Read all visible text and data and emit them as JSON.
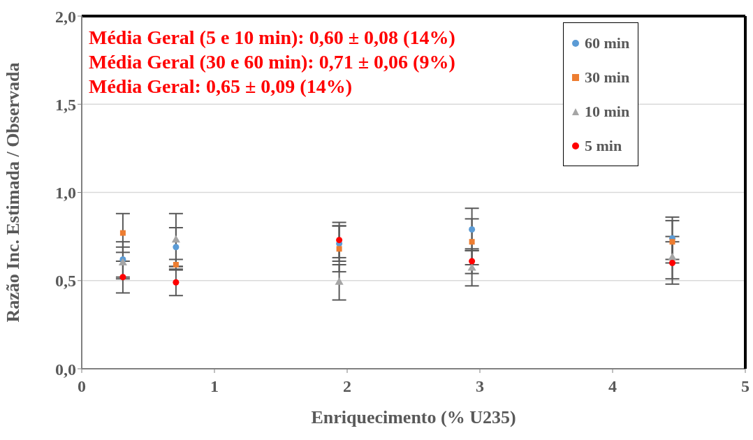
{
  "chart_data": {
    "type": "scatter",
    "xlabel": "Enriquecimento (% U235)",
    "ylabel": "Razão Inc. Estimada / Observada",
    "x": [
      0.31,
      0.71,
      1.94,
      2.94,
      4.45
    ],
    "series": [
      {
        "name": "60 min",
        "color": "#5b9bd5",
        "marker": "circle",
        "values": [
          0.62,
          0.69,
          0.71,
          0.79,
          0.74
        ],
        "errors": [
          0.1,
          0.11,
          0.1,
          0.12,
          0.12
        ]
      },
      {
        "name": "30 min",
        "color": "#ed7d31",
        "marker": "square",
        "values": [
          0.77,
          0.59,
          0.68,
          0.72,
          0.72
        ],
        "errors": [
          0.11,
          0.03,
          0.13,
          0.13,
          0.12
        ]
      },
      {
        "name": "10 min",
        "color": "#a5a5a5",
        "marker": "triangle",
        "values": [
          0.6,
          0.73,
          0.49,
          0.57,
          0.63
        ],
        "errors": [
          0.09,
          0.15,
          0.1,
          0.1,
          0.12
        ]
      },
      {
        "name": "5 min",
        "color": "#ff0000",
        "marker": "circle",
        "values": [
          0.52,
          0.49,
          0.73,
          0.61,
          0.6
        ],
        "errors": [
          0.09,
          0.075,
          0.1,
          0.07,
          0.12
        ]
      }
    ],
    "xlim": [
      0,
      5
    ],
    "xticks": [
      0,
      1,
      2,
      3,
      4,
      5
    ],
    "ylim": [
      0,
      2
    ],
    "yticks": [
      {
        "value": 0,
        "label": "0,0"
      },
      {
        "value": 0.5,
        "label": "0,5"
      },
      {
        "value": 1,
        "label": "1,0"
      },
      {
        "value": 1.5,
        "label": "1,5"
      },
      {
        "value": 2,
        "label": "2,0"
      }
    ],
    "grid": "y",
    "legend": "top right",
    "annotations": [
      "Média Geral (5 e 10 min): 0,60 ± 0,08 (14%)",
      "Média Geral (30 e 60 min): 0,71 ± 0,06 (9%)",
      "Média Geral: 0,65 ± 0,09 (14%)"
    ]
  }
}
